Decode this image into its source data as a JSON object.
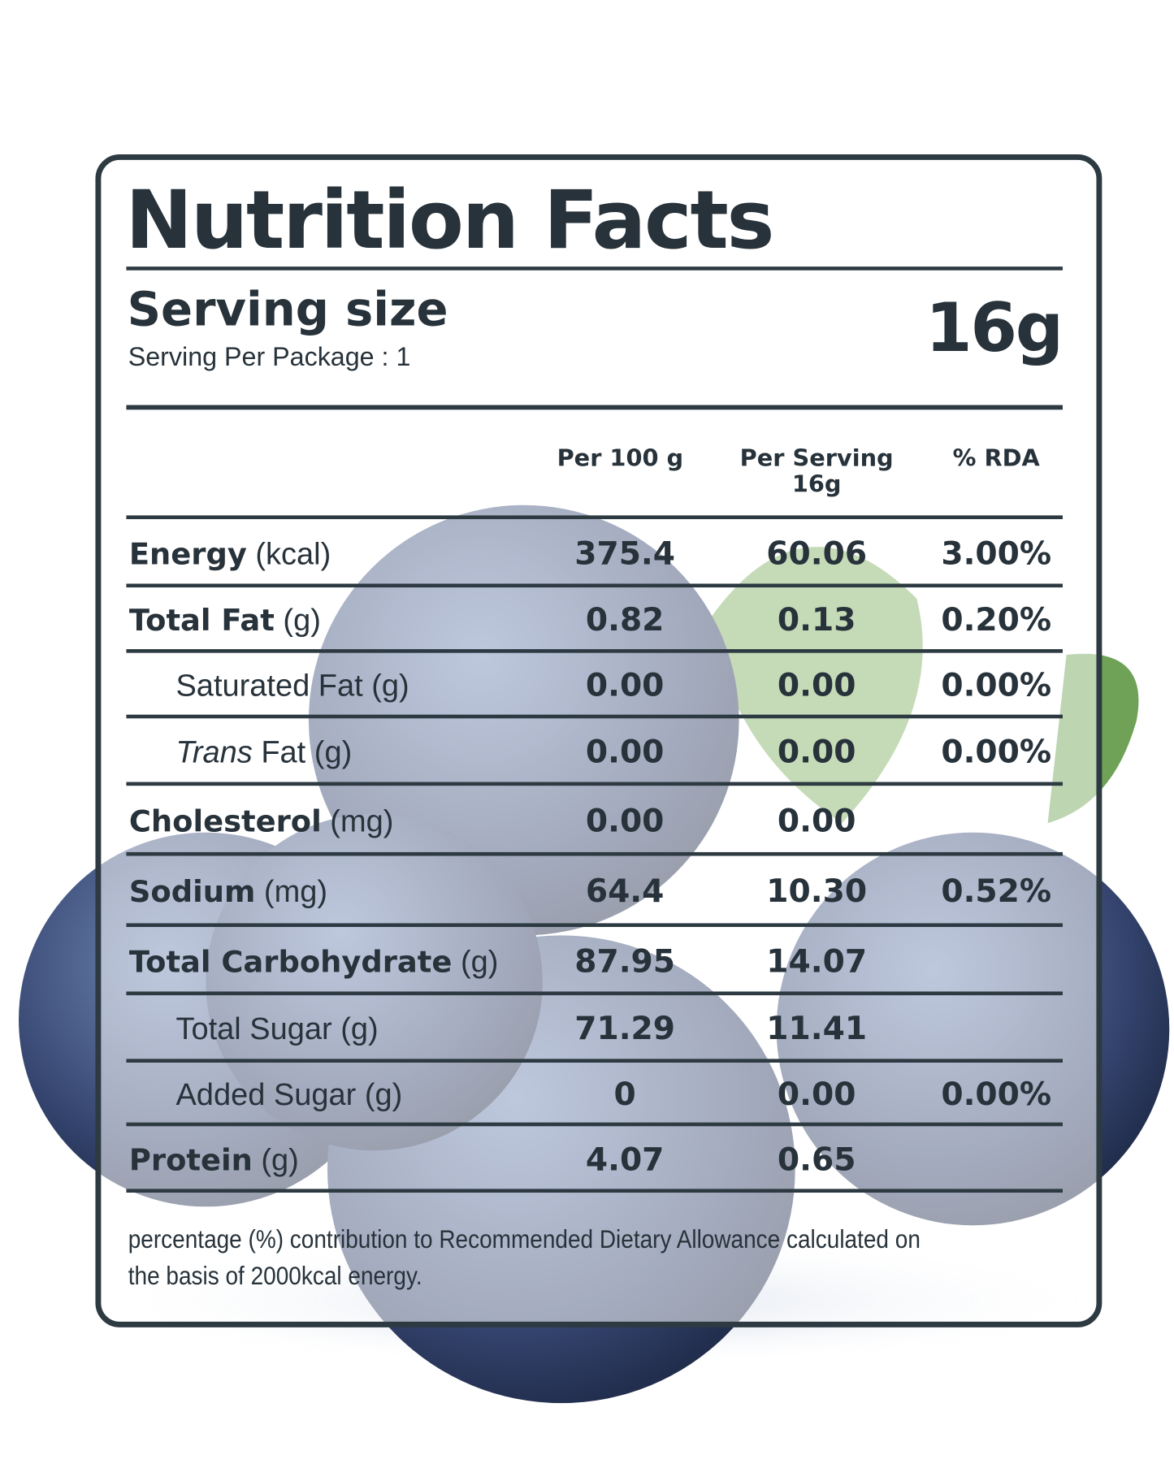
{
  "header": {
    "title": "Nutrition Facts",
    "serving_label": "Serving size",
    "serving_per_package": "Serving Per Package : 1",
    "serving_size": "16g"
  },
  "table": {
    "columns": [
      "Per 100 g",
      "Per Serving 16g",
      "% RDA"
    ],
    "rows": [
      {
        "name": "Energy",
        "unit": "(kcal)",
        "per_100g": "375.4",
        "per_serving": "60.06",
        "rda": "3.00%"
      },
      {
        "name": "Total Fat",
        "unit": "(g)",
        "per_100g": "0.82",
        "per_serving": "0.13",
        "rda": "0.20%"
      },
      {
        "name": "Saturated Fat (g)",
        "per_100g": "0.00",
        "per_serving": "0.00",
        "rda": "0.00%"
      },
      {
        "name": "Trans",
        "unit": "Fat (g)",
        "per_100g": "0.00",
        "per_serving": "0.00",
        "rda": "0.00%"
      },
      {
        "name": "Cholesterol",
        "unit": "(mg)",
        "per_100g": "0.00",
        "per_serving": "0.00"
      },
      {
        "name": "Sodium",
        "unit": "(mg)",
        "per_100g": "64.4",
        "per_serving": "10.30",
        "rda": "0.52%"
      },
      {
        "name": "Total Carbohydrate",
        "unit": "(g)",
        "per_100g": "87.95",
        "per_serving": "14.07"
      },
      {
        "name": "Total Sugar (g)",
        "per_100g": "71.29",
        "per_serving": "11.41"
      },
      {
        "name": "Added Sugar (g)",
        "per_100g": "0",
        "per_serving": "0.00",
        "rda": "0.00%"
      },
      {
        "name": "Protein",
        "unit": "(g)",
        "per_100g": "4.07",
        "per_serving": "0.65"
      }
    ]
  },
  "footnote": "percentage (%) contribution to Recommended Dietary Allowance calculated on the basis of 2000kcal energy."
}
